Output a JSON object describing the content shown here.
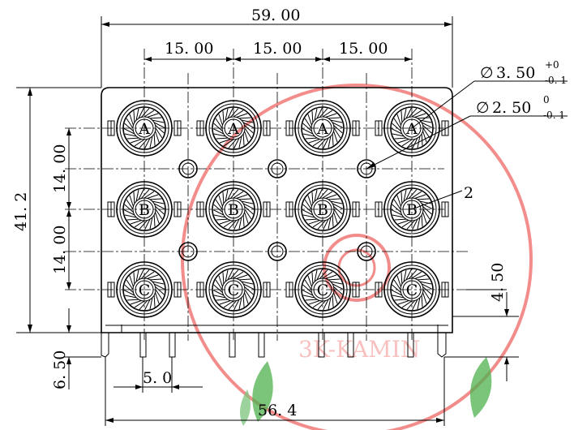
{
  "dimensions": {
    "overall_width": "59. 00",
    "pitch_1": "15. 00",
    "pitch_2": "15. 00",
    "pitch_3": "15. 00",
    "overall_height": "41. 2",
    "row_pitch_1": "14. 00",
    "row_pitch_2": "14. 00",
    "pin_length": "6. 50",
    "pin_pitch": "5. 0",
    "base_width": "56. 4",
    "offset": "4. 50"
  },
  "callouts": {
    "large_hole": {
      "symbol": "∅",
      "value": "3. 50",
      "tol_upper": "+0",
      "tol_lower": "-0. 1"
    },
    "small_hole": {
      "symbol": "∅",
      "value": "2. 50",
      "tol_upper": "0",
      "tol_lower": "-0. 1"
    },
    "part_ref": "2"
  },
  "rows": [
    {
      "label": "A"
    },
    {
      "label": "B"
    },
    {
      "label": "C"
    }
  ],
  "watermark": {
    "text": "3K-KAMIN"
  },
  "colors": {
    "drawing": "#000000",
    "stamp": "#e8302c",
    "leaf": "#4fb24f"
  }
}
